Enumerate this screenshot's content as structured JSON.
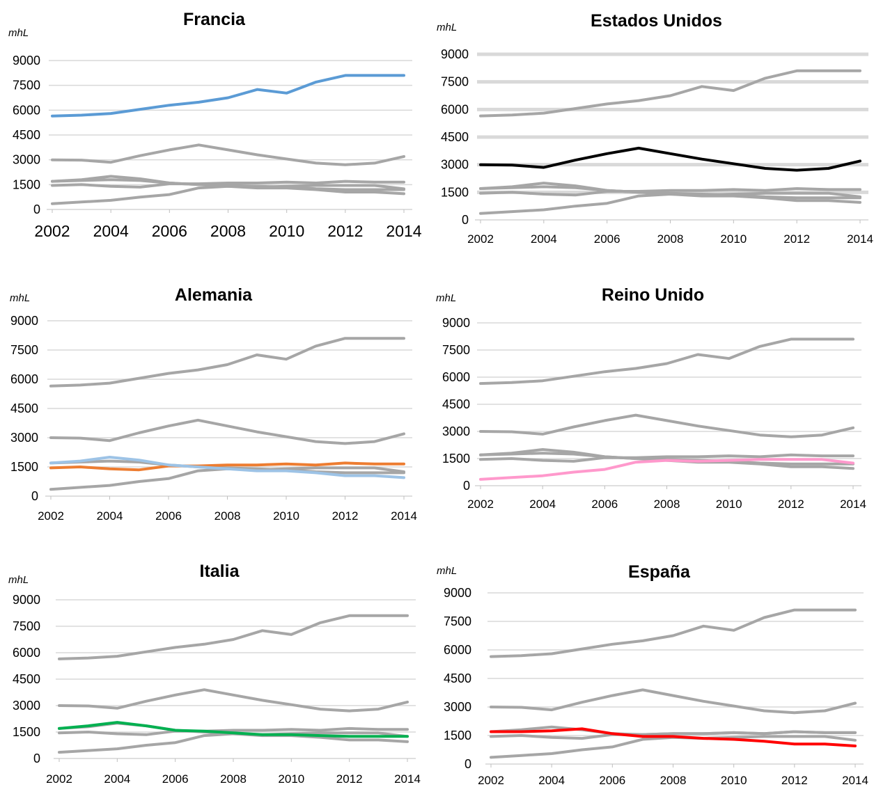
{
  "chart_data": [
    {
      "type": "line",
      "title": "Francia",
      "ylabel": "mhL",
      "x": [
        2002,
        2003,
        2004,
        2005,
        2006,
        2007,
        2008,
        2009,
        2010,
        2011,
        2012,
        2013,
        2014
      ],
      "x_ticks": [
        "2002",
        "2004",
        "2006",
        "2008",
        "2010",
        "2012",
        "2014"
      ],
      "y_ticks": [
        "0",
        "1500",
        "3000",
        "4500",
        "6000",
        "7500",
        "9000"
      ],
      "ylim": [
        0,
        9000
      ],
      "grid": true,
      "highlight_color": "#5b9bd5",
      "highlight_index": 0,
      "series": [
        {
          "values": [
            5650,
            5700,
            5800,
            6050,
            6300,
            6480,
            6750,
            7250,
            7030,
            7700,
            8100,
            8100,
            8100
          ]
        },
        {
          "values": [
            3000,
            2980,
            2850,
            3250,
            3600,
            3900,
            3600,
            3300,
            3050,
            2800,
            2700,
            2800,
            3200
          ]
        },
        {
          "values": [
            1450,
            1500,
            1400,
            1350,
            1550,
            1550,
            1600,
            1600,
            1650,
            1600,
            1700,
            1650,
            1650
          ]
        },
        {
          "values": [
            1700,
            1800,
            2000,
            1850,
            1600,
            1500,
            1400,
            1300,
            1300,
            1200,
            1050,
            1050,
            950
          ]
        },
        {
          "values": [
            1700,
            1750,
            1800,
            1750,
            1600,
            1500,
            1450,
            1400,
            1350,
            1250,
            1200,
            1200,
            1200
          ]
        },
        {
          "values": [
            350,
            450,
            550,
            750,
            900,
            1300,
            1400,
            1350,
            1400,
            1450,
            1450,
            1450,
            1250
          ]
        }
      ]
    },
    {
      "type": "line",
      "title": "Estados Unidos",
      "ylabel": "mhL",
      "x": [
        2002,
        2003,
        2004,
        2005,
        2006,
        2007,
        2008,
        2009,
        2010,
        2011,
        2012,
        2013,
        2014
      ],
      "x_ticks": [
        "2002",
        "2004",
        "2006",
        "2008",
        "2010",
        "2012",
        "2014"
      ],
      "y_ticks": [
        "0",
        "1500",
        "3000",
        "4500",
        "6000",
        "7500",
        "9000"
      ],
      "ylim": [
        0,
        9000
      ],
      "grid": true,
      "highlight_color": "#000000",
      "highlight_index": 1,
      "series": [
        {
          "values": [
            5650,
            5700,
            5800,
            6050,
            6300,
            6480,
            6750,
            7250,
            7030,
            7700,
            8100,
            8100,
            8100
          ]
        },
        {
          "values": [
            3000,
            2980,
            2850,
            3250,
            3600,
            3900,
            3600,
            3300,
            3050,
            2800,
            2700,
            2800,
            3200
          ]
        },
        {
          "values": [
            1450,
            1500,
            1400,
            1350,
            1550,
            1550,
            1600,
            1600,
            1650,
            1600,
            1700,
            1650,
            1650
          ]
        },
        {
          "values": [
            1700,
            1800,
            2000,
            1850,
            1600,
            1500,
            1400,
            1300,
            1300,
            1200,
            1050,
            1050,
            950
          ]
        },
        {
          "values": [
            1700,
            1750,
            1800,
            1750,
            1600,
            1500,
            1450,
            1400,
            1350,
            1250,
            1200,
            1200,
            1200
          ]
        },
        {
          "values": [
            350,
            450,
            550,
            750,
            900,
            1300,
            1400,
            1350,
            1400,
            1450,
            1450,
            1450,
            1250
          ]
        }
      ]
    },
    {
      "type": "line",
      "title": "Alemania",
      "ylabel": "mhL",
      "x": [
        2002,
        2003,
        2004,
        2005,
        2006,
        2007,
        2008,
        2009,
        2010,
        2011,
        2012,
        2013,
        2014
      ],
      "x_ticks": [
        "2002",
        "2004",
        "2006",
        "2008",
        "2010",
        "2012",
        "2014"
      ],
      "y_ticks": [
        "0",
        "1500",
        "3000",
        "4500",
        "6000",
        "7500",
        "9000"
      ],
      "ylim": [
        0,
        9000
      ],
      "grid": true,
      "highlight_color": "#ed7d31",
      "highlight_index": 2,
      "highlight2_color": "#9dc3e6",
      "highlight2_index": 3,
      "series": [
        {
          "values": [
            5650,
            5700,
            5800,
            6050,
            6300,
            6480,
            6750,
            7250,
            7030,
            7700,
            8100,
            8100,
            8100
          ]
        },
        {
          "values": [
            3000,
            2980,
            2850,
            3250,
            3600,
            3900,
            3600,
            3300,
            3050,
            2800,
            2700,
            2800,
            3200
          ]
        },
        {
          "values": [
            1450,
            1500,
            1400,
            1350,
            1550,
            1550,
            1600,
            1600,
            1650,
            1600,
            1700,
            1650,
            1650
          ]
        },
        {
          "values": [
            1700,
            1800,
            2000,
            1850,
            1600,
            1500,
            1400,
            1300,
            1300,
            1200,
            1050,
            1050,
            950
          ]
        },
        {
          "values": [
            1700,
            1750,
            1800,
            1750,
            1600,
            1500,
            1450,
            1400,
            1350,
            1250,
            1200,
            1200,
            1200
          ]
        },
        {
          "values": [
            350,
            450,
            550,
            750,
            900,
            1300,
            1400,
            1350,
            1400,
            1450,
            1450,
            1450,
            1250
          ]
        }
      ]
    },
    {
      "type": "line",
      "title": "Reino Unido",
      "ylabel": "mhL",
      "x": [
        2002,
        2003,
        2004,
        2005,
        2006,
        2007,
        2008,
        2009,
        2010,
        2011,
        2012,
        2013,
        2014
      ],
      "x_ticks": [
        "2002",
        "2004",
        "2006",
        "2008",
        "2010",
        "2012",
        "2014"
      ],
      "y_ticks": [
        "0",
        "1500",
        "3000",
        "4500",
        "6000",
        "7500",
        "9000"
      ],
      "ylim": [
        0,
        9000
      ],
      "grid": true,
      "highlight_color": "#ff99cc",
      "highlight_index": 5,
      "series": [
        {
          "values": [
            5650,
            5700,
            5800,
            6050,
            6300,
            6480,
            6750,
            7250,
            7030,
            7700,
            8100,
            8100,
            8100
          ]
        },
        {
          "values": [
            3000,
            2980,
            2850,
            3250,
            3600,
            3900,
            3600,
            3300,
            3050,
            2800,
            2700,
            2800,
            3200
          ]
        },
        {
          "values": [
            1450,
            1500,
            1400,
            1350,
            1550,
            1550,
            1600,
            1600,
            1650,
            1600,
            1700,
            1650,
            1650
          ]
        },
        {
          "values": [
            1700,
            1800,
            2000,
            1850,
            1600,
            1500,
            1400,
            1300,
            1300,
            1200,
            1050,
            1050,
            950
          ]
        },
        {
          "values": [
            1700,
            1750,
            1800,
            1750,
            1600,
            1500,
            1450,
            1400,
            1350,
            1250,
            1200,
            1200,
            1200
          ]
        },
        {
          "values": [
            350,
            450,
            550,
            750,
            900,
            1300,
            1400,
            1350,
            1400,
            1450,
            1450,
            1450,
            1250
          ]
        }
      ]
    },
    {
      "type": "line",
      "title": "Italia",
      "ylabel": "mhL",
      "x": [
        2002,
        2003,
        2004,
        2005,
        2006,
        2007,
        2008,
        2009,
        2010,
        2011,
        2012,
        2013,
        2014
      ],
      "x_ticks": [
        "2002",
        "2004",
        "2006",
        "2008",
        "2010",
        "2012",
        "2014"
      ],
      "y_ticks": [
        "0",
        "1500",
        "3000",
        "4500",
        "6000",
        "7500",
        "9000"
      ],
      "ylim": [
        0,
        9000
      ],
      "grid": true,
      "highlight_color": "#00b050",
      "highlight_index": 4,
      "series": [
        {
          "values": [
            5650,
            5700,
            5800,
            6050,
            6300,
            6480,
            6750,
            7250,
            7030,
            7700,
            8100,
            8100,
            8100
          ]
        },
        {
          "values": [
            3000,
            2980,
            2850,
            3250,
            3600,
            3900,
            3600,
            3300,
            3050,
            2800,
            2700,
            2800,
            3200
          ]
        },
        {
          "values": [
            1450,
            1500,
            1400,
            1350,
            1550,
            1550,
            1600,
            1600,
            1650,
            1600,
            1700,
            1650,
            1650
          ]
        },
        {
          "values": [
            1700,
            1800,
            2000,
            1850,
            1600,
            1500,
            1400,
            1300,
            1300,
            1200,
            1050,
            1050,
            950
          ]
        },
        {
          "values": [
            1700,
            1850,
            2050,
            1850,
            1600,
            1550,
            1450,
            1350,
            1350,
            1300,
            1250,
            1250,
            1250
          ]
        },
        {
          "values": [
            350,
            450,
            550,
            750,
            900,
            1300,
            1400,
            1350,
            1400,
            1450,
            1450,
            1450,
            1250
          ]
        }
      ]
    },
    {
      "type": "line",
      "title": "España",
      "ylabel": "mhL",
      "x": [
        2002,
        2003,
        2004,
        2005,
        2006,
        2007,
        2008,
        2009,
        2010,
        2011,
        2012,
        2013,
        2014
      ],
      "x_ticks": [
        "2002",
        "2004",
        "2006",
        "2008",
        "2010",
        "2012",
        "2014"
      ],
      "y_ticks": [
        "0",
        "1500",
        "3000",
        "4500",
        "6000",
        "7500",
        "9000"
      ],
      "ylim": [
        0,
        9000
      ],
      "grid": true,
      "highlight_color": "#ff0000",
      "highlight_index": 3,
      "series": [
        {
          "values": [
            5650,
            5700,
            5800,
            6050,
            6300,
            6480,
            6750,
            7250,
            7030,
            7700,
            8100,
            8100,
            8100
          ]
        },
        {
          "values": [
            3000,
            2980,
            2850,
            3250,
            3600,
            3900,
            3600,
            3300,
            3050,
            2800,
            2700,
            2800,
            3200
          ]
        },
        {
          "values": [
            1450,
            1500,
            1400,
            1350,
            1550,
            1550,
            1600,
            1600,
            1650,
            1600,
            1700,
            1650,
            1650
          ]
        },
        {
          "values": [
            1700,
            1700,
            1750,
            1850,
            1600,
            1450,
            1450,
            1350,
            1300,
            1200,
            1050,
            1050,
            950
          ]
        },
        {
          "values": [
            1700,
            1800,
            1950,
            1800,
            1600,
            1550,
            1600,
            1600,
            1650,
            1600,
            1700,
            1650,
            1650
          ]
        },
        {
          "values": [
            350,
            450,
            550,
            750,
            900,
            1300,
            1400,
            1350,
            1400,
            1450,
            1450,
            1450,
            1250
          ]
        }
      ]
    }
  ]
}
